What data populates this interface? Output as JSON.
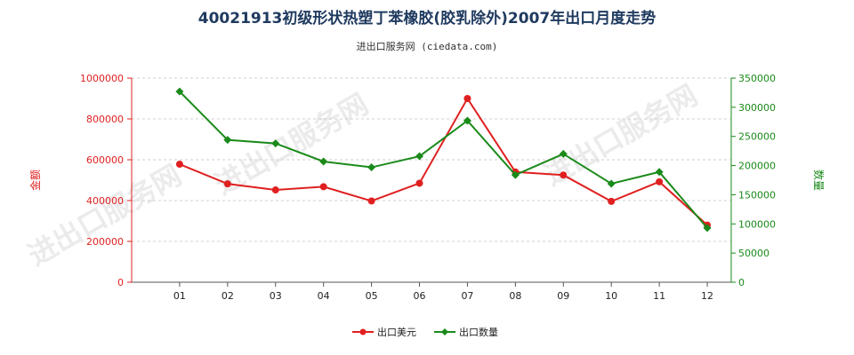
{
  "chart_data": {
    "type": "line",
    "title": "40021913初级形状热塑丁苯橡胶(胶乳除外)2007年出口月度走势",
    "subtitle": "进出口服务网 (ciedata.com)",
    "watermark": "进出口服务网",
    "categories": [
      "01",
      "02",
      "03",
      "04",
      "05",
      "06",
      "07",
      "08",
      "09",
      "10",
      "11",
      "12"
    ],
    "ylabel_left": "金额",
    "ylabel_right": "数量",
    "ylim_left": [
      0,
      1000000
    ],
    "ylim_right": [
      0,
      350000
    ],
    "yticks_left": [
      "0",
      "200000",
      "400000",
      "600000",
      "800000",
      "1000000"
    ],
    "yticks_right": [
      "0",
      "50000",
      "100000",
      "150000",
      "200000",
      "250000",
      "300000",
      "350000"
    ],
    "legend_position": "bottom",
    "grid": "horizontal",
    "series": [
      {
        "name": "出口美元",
        "axis": "left",
        "color": "#e02020",
        "values": [
          578000,
          482000,
          452000,
          468000,
          398000,
          485000,
          900000,
          540000,
          525000,
          396000,
          492000,
          280000
        ]
      },
      {
        "name": "出口数量",
        "axis": "right",
        "color": "#1a8a1a",
        "values": [
          327000,
          244000,
          238000,
          207000,
          197000,
          216000,
          277000,
          184000,
          220000,
          169000,
          189000,
          93000
        ]
      }
    ]
  }
}
